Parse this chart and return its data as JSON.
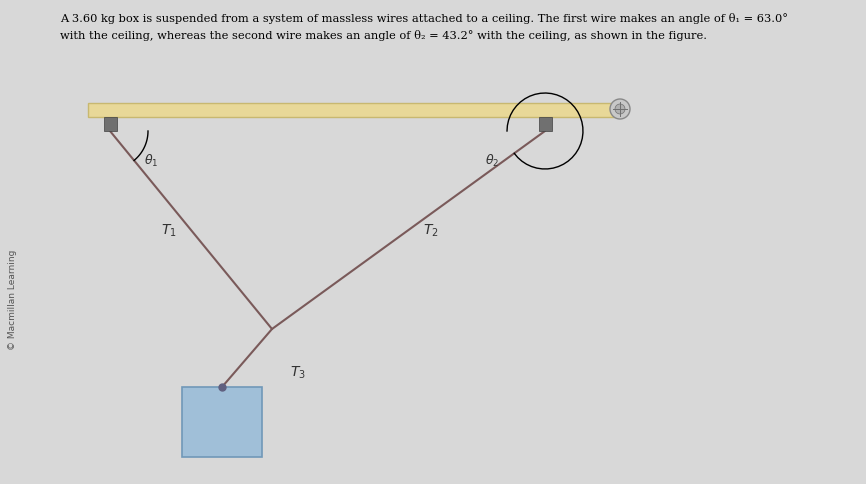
{
  "bg_color": "#d8d8d8",
  "fig_area_color": "#e8e6e2",
  "title_text_line1": "A 3.60 kg box is suspended from a system of massless wires attached to a ceiling. The first wire makes an angle of θ₁ = 63.0°",
  "title_text_line2": "with the ceiling, whereas the second wire makes an angle of θ₂ = 43.2° with the ceiling, as shown in the figure.",
  "theta1_deg": 63.0,
  "theta2_deg": 43.2,
  "ceiling_color": "#e8d898",
  "ceiling_edge_color": "#c8b870",
  "anchor_color": "#707070",
  "wire_color": "#7a5a5a",
  "box_color": "#a0bfd8",
  "box_edge_color": "#7098b8",
  "copyright_text": "© Macmillan Learning",
  "label_color": "#333333"
}
